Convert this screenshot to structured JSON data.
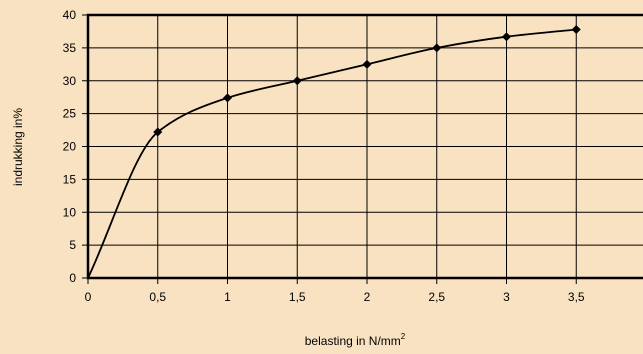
{
  "chart_data": {
    "type": "line",
    "title": "",
    "xlabel": "belasting in N/mm",
    "xlabel_superscript": "2",
    "ylabel": "indrukking in%",
    "xlim": [
      0,
      4
    ],
    "ylim": [
      0,
      40
    ],
    "xticks": [
      "0",
      "0,5",
      "1",
      "1,5",
      "2",
      "2,5",
      "3",
      "3,5"
    ],
    "yticks": [
      "0",
      "5",
      "10",
      "15",
      "20",
      "25",
      "30",
      "35",
      "40"
    ],
    "grid": true,
    "legend": "none",
    "colors": {
      "background": "#f9e2c1",
      "line": "#000000",
      "grid": "#000000"
    },
    "series": [
      {
        "x": [
          0,
          0.5,
          1,
          1.5,
          2,
          2.5,
          3,
          3.5
        ],
        "y": [
          0,
          22.2,
          27.4,
          30,
          32.5,
          35,
          36.7,
          37.8
        ]
      }
    ]
  }
}
